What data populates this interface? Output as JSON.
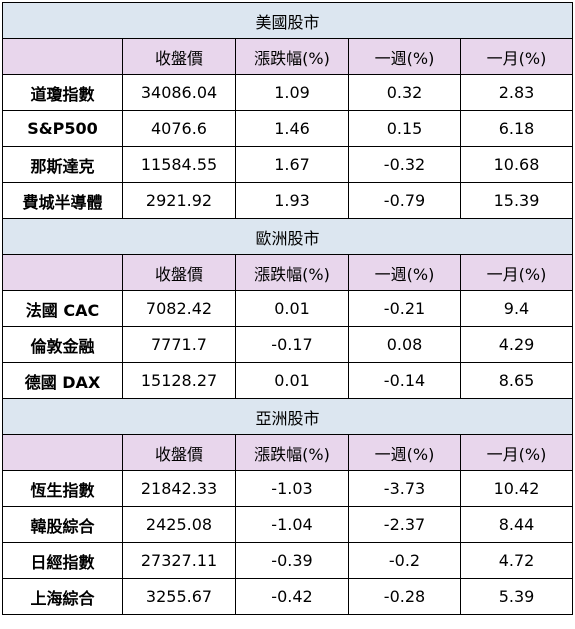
{
  "colors": {
    "section_header_bg": "#dce6f0",
    "column_header_bg": "#e8d6ec",
    "border": "#000000"
  },
  "columns": [
    "",
    "收盤價",
    "漲跌幅(%)",
    "一週(%)",
    "一月(%)"
  ],
  "sections": [
    {
      "title": "美國股市",
      "rows": [
        {
          "name": "道瓊指數",
          "close": "34086.04",
          "change": "1.09",
          "week": "0.32",
          "month": "2.83"
        },
        {
          "name": "S&P500",
          "close": "4076.6",
          "change": "1.46",
          "week": "0.15",
          "month": "6.18"
        },
        {
          "name": "那斯達克",
          "close": "11584.55",
          "change": "1.67",
          "week": "-0.32",
          "month": "10.68"
        },
        {
          "name": "費城半導體",
          "close": "2921.92",
          "change": "1.93",
          "week": "-0.79",
          "month": "15.39"
        }
      ]
    },
    {
      "title": "歐洲股市",
      "rows": [
        {
          "name": "法國 CAC",
          "close": "7082.42",
          "change": "0.01",
          "week": "-0.21",
          "month": "9.4"
        },
        {
          "name": "倫敦金融",
          "close": "7771.7",
          "change": "-0.17",
          "week": "0.08",
          "month": "4.29"
        },
        {
          "name": "德國 DAX",
          "close": "15128.27",
          "change": "0.01",
          "week": "-0.14",
          "month": "8.65"
        }
      ]
    },
    {
      "title": "亞洲股市",
      "rows": [
        {
          "name": "恆生指數",
          "close": "21842.33",
          "change": "-1.03",
          "week": "-3.73",
          "month": "10.42"
        },
        {
          "name": "韓股綜合",
          "close": "2425.08",
          "change": "-1.04",
          "week": "-2.37",
          "month": "8.44"
        },
        {
          "name": "日經指數",
          "close": "27327.11",
          "change": "-0.39",
          "week": "-0.2",
          "month": "4.72"
        },
        {
          "name": "上海綜合",
          "close": "3255.67",
          "change": "-0.42",
          "week": "-0.28",
          "month": "5.39"
        }
      ]
    }
  ]
}
